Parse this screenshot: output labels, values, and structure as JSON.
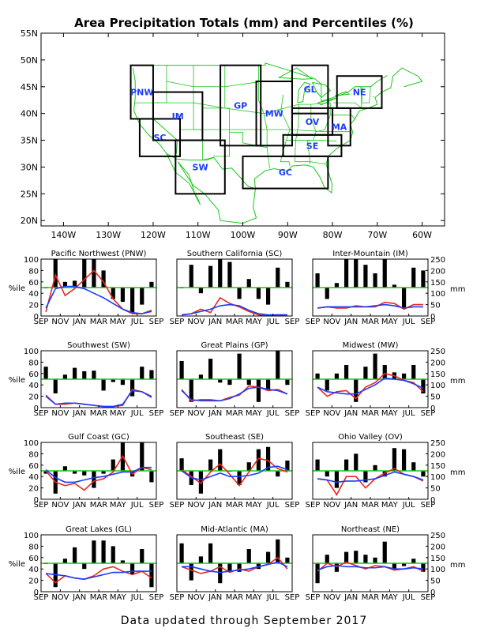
{
  "title": "Area Precipitation Totals (mm) and Percentiles (%)",
  "footer": "Data updated through September 2017",
  "map": {
    "lat_labels": [
      "55N",
      "50N",
      "45N",
      "40N",
      "35N",
      "30N",
      "25N",
      "20N"
    ],
    "lon_labels": [
      "140W",
      "130W",
      "120W",
      "110W",
      "100W",
      "90W",
      "80W",
      "70W",
      "60W"
    ],
    "regions": [
      {
        "code": "PNW",
        "lon": [
          -125,
          -120
        ],
        "lat": [
          39,
          49
        ]
      },
      {
        "code": "SC",
        "lon": [
          -123,
          -114
        ],
        "lat": [
          32,
          39
        ]
      },
      {
        "code": "IM",
        "lon": [
          -120,
          -109
        ],
        "lat": [
          35,
          44
        ]
      },
      {
        "code": "SW",
        "lon": [
          -115,
          -104
        ],
        "lat": [
          25,
          35
        ]
      },
      {
        "code": "GP",
        "lon": [
          -105,
          -96
        ],
        "lat": [
          34,
          49
        ]
      },
      {
        "code": "MW",
        "lon": [
          -97,
          -89
        ],
        "lat": [
          34,
          46
        ]
      },
      {
        "code": "GL",
        "lon": [
          -89,
          -81
        ],
        "lat": [
          40,
          49
        ]
      },
      {
        "code": "OV",
        "lon": [
          -89,
          -80
        ],
        "lat": [
          36,
          41
        ]
      },
      {
        "code": "SE",
        "lon": [
          -91,
          -78
        ],
        "lat": [
          32,
          36
        ]
      },
      {
        "code": "GC",
        "lon": [
          -100,
          -81
        ],
        "lat": [
          26,
          32
        ]
      },
      {
        "code": "MA",
        "lon": [
          -81,
          -76
        ],
        "lat": [
          34,
          41
        ]
      },
      {
        "code": "NE",
        "lon": [
          -79,
          -69
        ],
        "lat": [
          41,
          47
        ]
      }
    ]
  },
  "axis": {
    "months": [
      "SEP",
      "NOV",
      "JAN",
      "MAR",
      "MAY",
      "JUL",
      "SEP"
    ],
    "pct_ticks": [
      "0",
      "20",
      "40",
      "60",
      "80",
      "100"
    ],
    "mm_ticks": [
      "0",
      "50",
      "100",
      "150",
      "200",
      "250"
    ],
    "pct_label": "%ile",
    "mm_label": "mm"
  },
  "chart_data": [
    {
      "type": "bar",
      "title": "Pacific Northwest (PNW)",
      "pct": [
        50,
        100,
        60,
        62,
        100,
        100,
        80,
        30,
        25,
        5,
        20,
        60
      ],
      "mm_red": [
        18,
        180,
        90,
        120,
        160,
        200,
        150,
        75,
        30,
        10,
        10,
        25
      ],
      "mm_blue": [
        35,
        120,
        130,
        130,
        120,
        100,
        80,
        55,
        30,
        15,
        10,
        20
      ]
    },
    {
      "type": "bar",
      "title": "Southern California (SC)",
      "pct": [
        50,
        90,
        40,
        88,
        100,
        95,
        30,
        65,
        30,
        20,
        85,
        60
      ],
      "mm_red": [
        5,
        10,
        30,
        15,
        80,
        55,
        40,
        20,
        5,
        2,
        5,
        5
      ],
      "mm_blue": [
        5,
        10,
        20,
        30,
        45,
        50,
        45,
        25,
        10,
        5,
        5,
        5
      ]
    },
    {
      "type": "bar",
      "title": "Inter-Mountain (IM)",
      "pct": [
        75,
        30,
        58,
        100,
        100,
        90,
        75,
        100,
        55,
        15,
        85,
        80
      ],
      "mm_red": [
        35,
        40,
        35,
        35,
        45,
        40,
        40,
        60,
        55,
        30,
        50,
        50
      ],
      "mm_blue": [
        35,
        40,
        40,
        40,
        40,
        40,
        45,
        50,
        45,
        35,
        40,
        40
      ]
    },
    {
      "type": "bar",
      "title": "Southwest (SW)",
      "pct": [
        72,
        25,
        58,
        70,
        64,
        65,
        30,
        45,
        40,
        20,
        72,
        66
      ],
      "mm_red": [
        55,
        15,
        15,
        20,
        15,
        10,
        5,
        5,
        10,
        80,
        70,
        50
      ],
      "mm_blue": [
        50,
        15,
        20,
        20,
        15,
        10,
        5,
        5,
        15,
        75,
        70,
        45
      ]
    },
    {
      "type": "bar",
      "title": "Great Plains (GP)",
      "pct": [
        82,
        10,
        58,
        86,
        44,
        40,
        95,
        40,
        10,
        30,
        100,
        40
      ],
      "mm_red": [
        80,
        30,
        35,
        35,
        30,
        45,
        55,
        95,
        90,
        75,
        80,
        60
      ],
      "mm_blue": [
        75,
        35,
        30,
        30,
        30,
        40,
        60,
        85,
        90,
        80,
        75,
        60
      ]
    },
    {
      "type": "bar",
      "title": "Midwest (MW)",
      "pct": [
        60,
        30,
        60,
        75,
        10,
        72,
        95,
        75,
        62,
        60,
        75,
        25
      ],
      "mm_red": [
        90,
        50,
        70,
        75,
        40,
        90,
        110,
        150,
        140,
        120,
        110,
        70
      ],
      "mm_blue": [
        90,
        70,
        65,
        60,
        60,
        80,
        100,
        130,
        125,
        120,
        105,
        85
      ]
    },
    {
      "type": "bar",
      "title": "Gulf Coast (GC)",
      "pct": [
        45,
        10,
        58,
        45,
        42,
        20,
        45,
        70,
        100,
        40,
        100,
        30
      ],
      "mm_red": [
        125,
        75,
        60,
        70,
        40,
        80,
        90,
        120,
        190,
        110,
        140,
        130
      ],
      "mm_blue": [
        130,
        95,
        75,
        75,
        85,
        95,
        100,
        110,
        120,
        120,
        140,
        140
      ]
    },
    {
      "type": "bar",
      "title": "Southeast (SE)",
      "pct": [
        72,
        25,
        10,
        70,
        88,
        50,
        25,
        65,
        88,
        92,
        40,
        68
      ],
      "mm_red": [
        130,
        100,
        70,
        120,
        155,
        110,
        60,
        120,
        180,
        170,
        135,
        120
      ],
      "mm_blue": [
        125,
        95,
        85,
        100,
        115,
        100,
        100,
        105,
        115,
        140,
        145,
        130
      ]
    },
    {
      "type": "bar",
      "title": "Ohio Valley (OV)",
      "pct": [
        70,
        40,
        20,
        70,
        80,
        30,
        60,
        40,
        90,
        88,
        65,
        40
      ],
      "mm_red": [
        90,
        85,
        20,
        100,
        100,
        50,
        90,
        115,
        135,
        110,
        100,
        80
      ],
      "mm_blue": [
        90,
        85,
        75,
        80,
        80,
        85,
        90,
        105,
        120,
        110,
        100,
        85
      ]
    },
    {
      "type": "bar",
      "title": "Great Lakes (GL)",
      "pct": [
        50,
        8,
        58,
        78,
        40,
        90,
        90,
        80,
        55,
        30,
        75,
        8
      ],
      "mm_red": [
        80,
        40,
        70,
        60,
        55,
        70,
        100,
        110,
        90,
        75,
        90,
        60
      ],
      "mm_blue": [
        80,
        75,
        70,
        60,
        55,
        65,
        75,
        85,
        85,
        90,
        90,
        90
      ]
    },
    {
      "type": "bar",
      "title": "Mid-Atlantic (MA)",
      "pct": [
        85,
        20,
        62,
        85,
        15,
        35,
        35,
        75,
        40,
        70,
        92,
        60
      ],
      "mm_red": [
        110,
        95,
        80,
        90,
        110,
        85,
        100,
        90,
        110,
        120,
        150,
        100
      ],
      "mm_blue": [
        110,
        110,
        100,
        90,
        85,
        90,
        95,
        100,
        110,
        120,
        130,
        110
      ]
    },
    {
      "type": "bar",
      "title": "Northeast (NE)",
      "pct": [
        15,
        65,
        35,
        70,
        72,
        65,
        60,
        88,
        40,
        45,
        58,
        35
      ],
      "mm_red": [
        90,
        125,
        110,
        130,
        115,
        100,
        115,
        110,
        95,
        100,
        110,
        90
      ],
      "mm_blue": [
        95,
        110,
        115,
        110,
        110,
        105,
        105,
        110,
        100,
        100,
        105,
        100
      ]
    }
  ],
  "colors": {
    "bars": "#000000",
    "red": "#e8291b",
    "blue": "#1a3cff",
    "green": "#19c719",
    "grid": "#19c719"
  }
}
